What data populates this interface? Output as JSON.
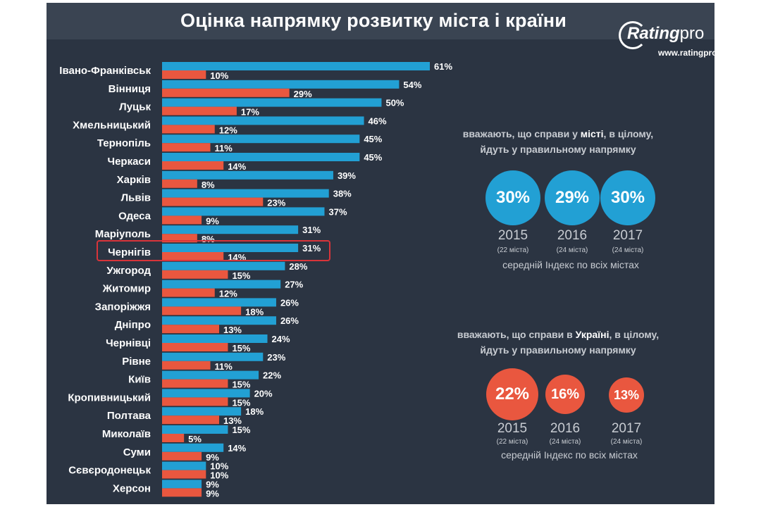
{
  "title": "Оцінка напрямку розвитку міста і країни",
  "logo": {
    "name": "Rating",
    "suffix": "pro",
    "url": "www.ratingpro."
  },
  "colors": {
    "city": "#22a0d4",
    "country": "#e9573f",
    "highlight": "#d9343a"
  },
  "highlight_city": "Чернігів",
  "chart_data": {
    "type": "bar",
    "orientation": "horizontal",
    "categories": [
      "Івано-Франківськ",
      "Вінниця",
      "Луцьк",
      "Хмельницький",
      "Тернопіль",
      "Черкаси",
      "Харків",
      "Львів",
      "Одеса",
      "Маріуполь",
      "Чернігів",
      "Ужгород",
      "Житомир",
      "Запоріжжя",
      "Дніпро",
      "Чернівці",
      "Рівне",
      "Київ",
      "Кропивницький",
      "Полтава",
      "Миколаїв",
      "Суми",
      "Сєвєродонецьк",
      "Херсон"
    ],
    "series": [
      {
        "values": [
          61,
          54,
          50,
          46,
          45,
          45,
          39,
          38,
          37,
          31,
          31,
          28,
          27,
          26,
          26,
          24,
          23,
          22,
          20,
          18,
          15,
          14,
          10,
          9
        ]
      },
      {
        "values": [
          10,
          29,
          17,
          12,
          11,
          14,
          8,
          23,
          9,
          8,
          14,
          15,
          12,
          18,
          13,
          15,
          11,
          15,
          15,
          13,
          5,
          9,
          10,
          9
        ]
      }
    ],
    "value_suffix": "%",
    "xlim": [
      0,
      61
    ]
  },
  "city_panel": {
    "caption_pre": "вважають, що справи у ",
    "caption_bold": "місті",
    "caption_post": ", в цілому,",
    "caption_line2": "йдуть у правильному напрямку",
    "items": [
      {
        "value": "30%",
        "year": "2015",
        "note": "(22 міста)"
      },
      {
        "value": "29%",
        "year": "2016",
        "note": "(24 міста)"
      },
      {
        "value": "30%",
        "year": "2017",
        "note": "(24 міста)"
      }
    ],
    "footer": "середній Індекс по всіх містах"
  },
  "country_panel": {
    "caption_pre": "вважають, що справи в ",
    "caption_bold": "Україні",
    "caption_post": ", в цілому,",
    "caption_line2": "йдуть у правильному напрямку",
    "items": [
      {
        "value": "22%",
        "year": "2015",
        "note": "(22 міста)"
      },
      {
        "value": "16%",
        "year": "2016",
        "note": "(24 міста)"
      },
      {
        "value": "13%",
        "year": "2017",
        "note": "(24 міста)"
      }
    ],
    "footer": "середній Індекс по всіх містах"
  }
}
